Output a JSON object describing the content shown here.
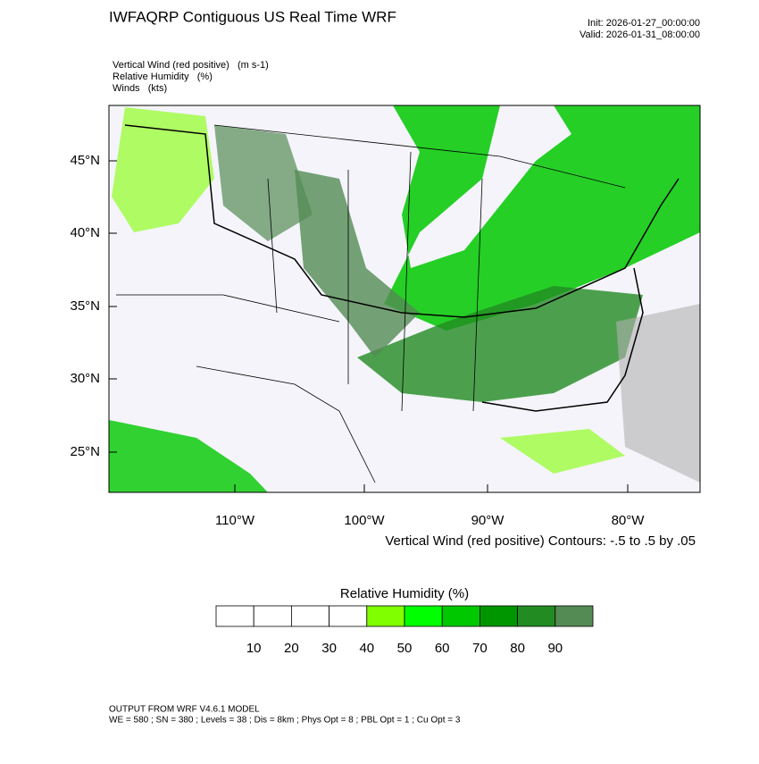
{
  "header": {
    "title": "IWFAQRP Contiguous US Real Time WRF",
    "init": "Init: 2026-01-27_00:00:00",
    "valid": "Valid: 2026-01-31_08:00:00"
  },
  "fields": [
    "Vertical Wind (red positive)   (m s-1)",
    "Relative Humidity   (%)",
    "Winds   (kts)"
  ],
  "map": {
    "lat_labels": [
      "45°N",
      "40°N",
      "35°N",
      "30°N",
      "25°N"
    ],
    "lon_labels": [
      "110°W",
      "100°W",
      "90°W",
      "80°W"
    ],
    "contour_note": "Vertical Wind (red positive) Contours: -.5 to .5 by .05"
  },
  "colorbar": {
    "title": "Relative Humidity  (%)",
    "labels": [
      "10",
      "20",
      "30",
      "40",
      "50",
      "60",
      "70",
      "80",
      "90"
    ],
    "colors": [
      "#ffffff",
      "#ffffff",
      "#ffffff",
      "#ffffff",
      "#80ff00",
      "#00ff00",
      "#00c800",
      "#009600",
      "#228b22",
      "#548b54"
    ]
  },
  "footer": [
    "OUTPUT FROM WRF V4.6.1 MODEL",
    "WE = 580 ; SN = 380 ; Levels = 38 ; Dis = 8km ; Phys Opt = 8 ; PBL Opt = 1 ; Cu Opt = 3"
  ]
}
